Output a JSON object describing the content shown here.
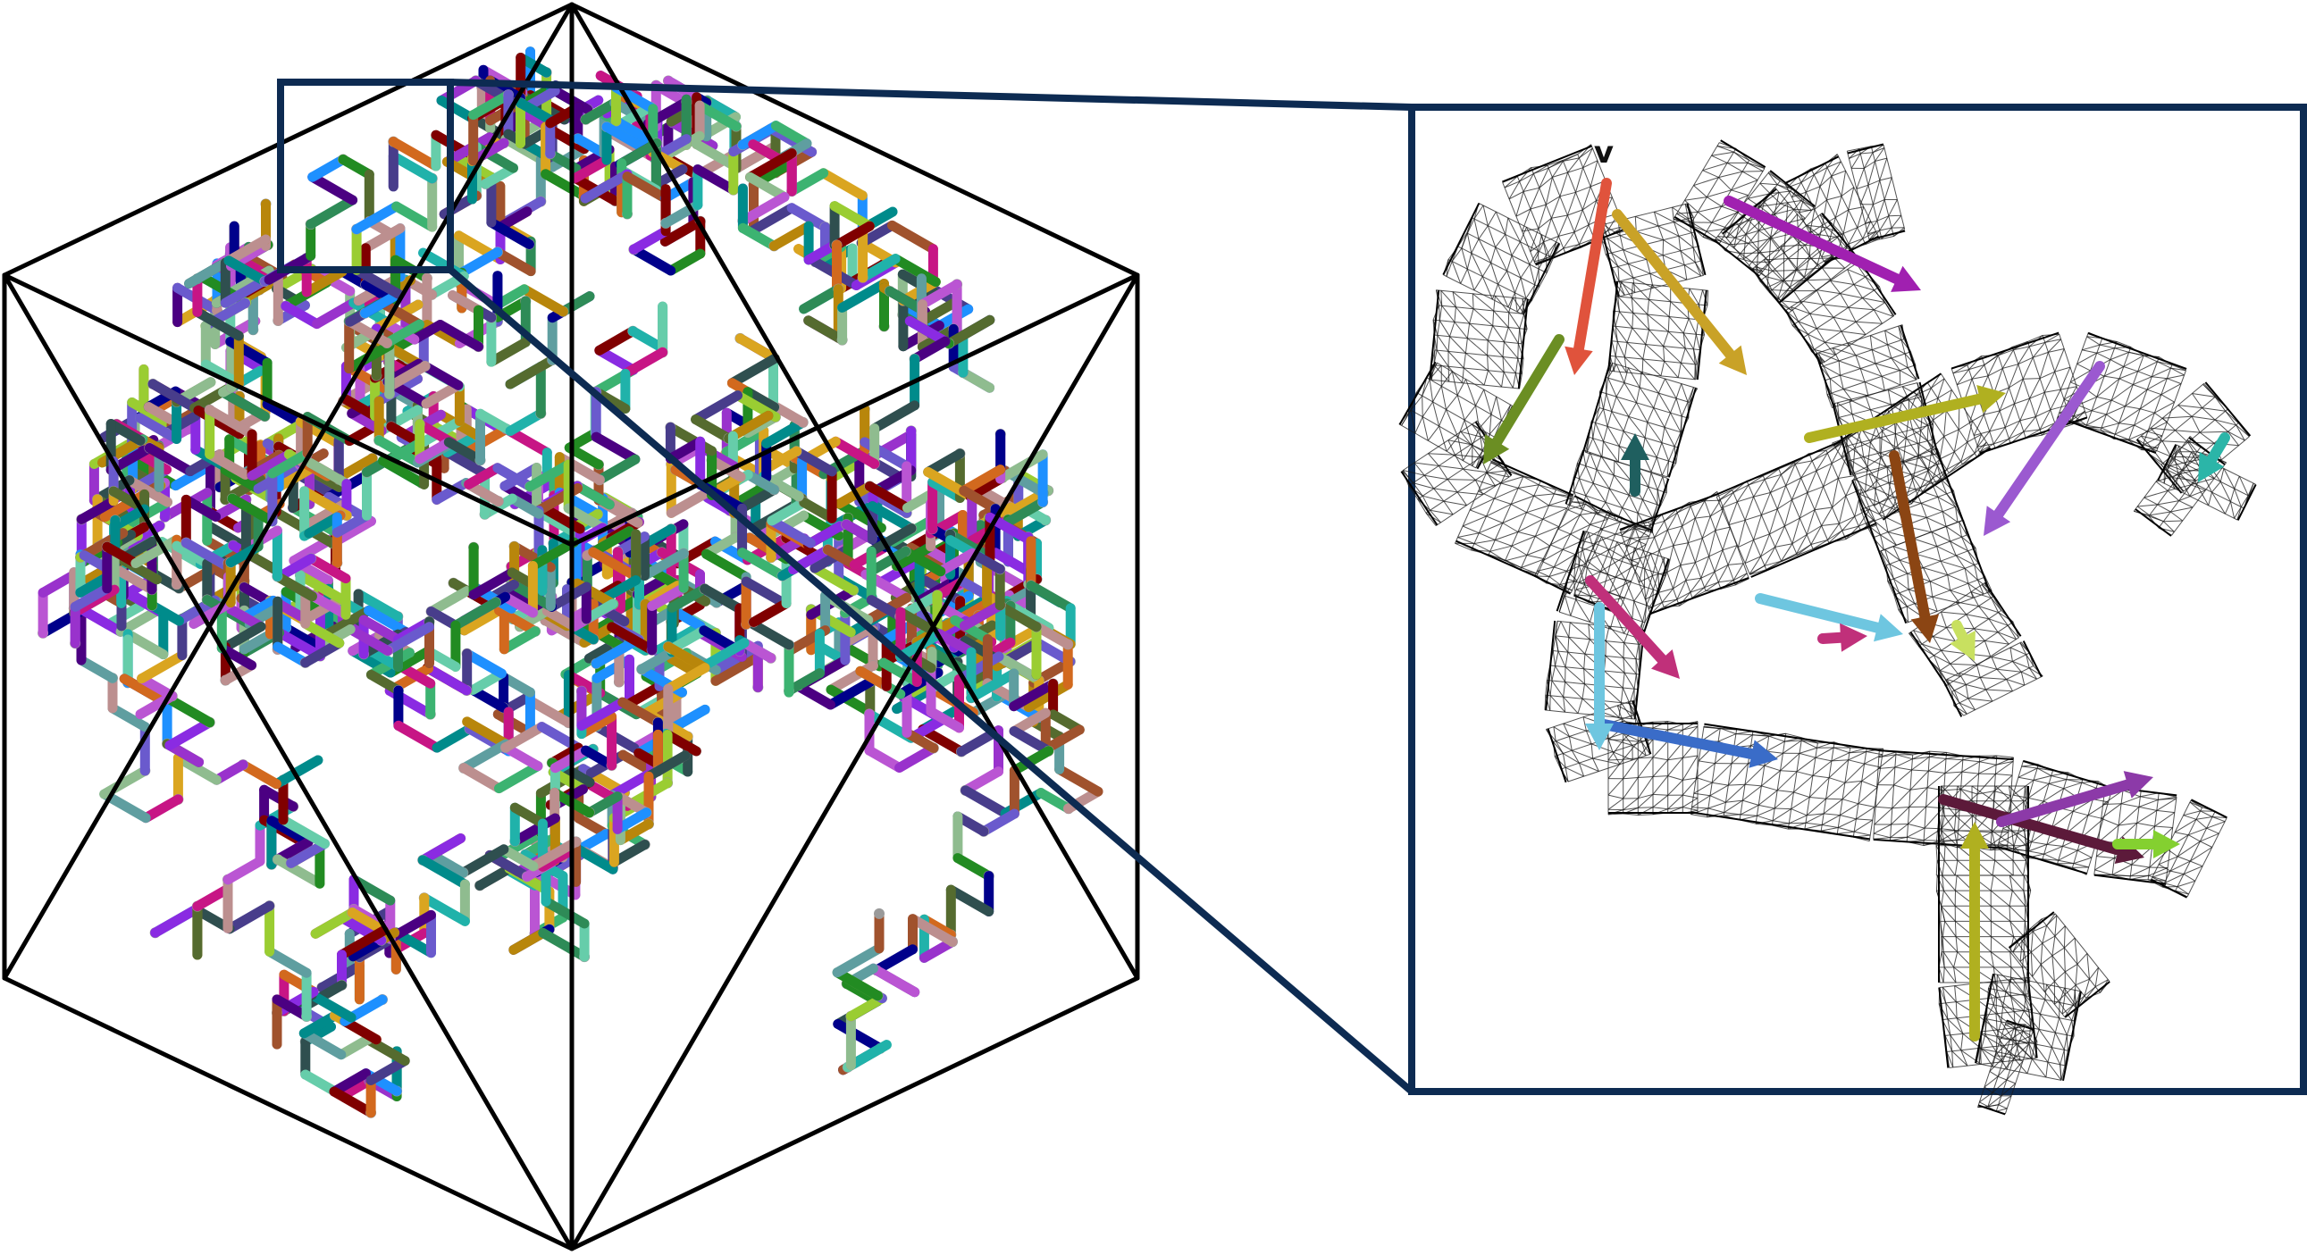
{
  "figure": {
    "zoom_frame_color": "#0d2b52",
    "cube_edge_color": "#000000",
    "mesh_color": "#1a1a1a",
    "background": "#ffffff"
  },
  "left_panel": {
    "object": "polymer-chain-in-cube",
    "segment_palette": [
      "#8a2be2",
      "#2e8b57",
      "#c71585",
      "#1e90ff",
      "#b8860b",
      "#228b22",
      "#4b0082",
      "#20b2aa",
      "#9acd32",
      "#800000",
      "#6a5acd",
      "#daa520",
      "#3cb371",
      "#ba55d3",
      "#008b8b",
      "#556b2f",
      "#d2691e",
      "#483d8b",
      "#66cdaa",
      "#9932cc",
      "#00008b",
      "#8fbc8f",
      "#a0522d",
      "#5f9ea0",
      "#bc8f8f",
      "#2f4f4f"
    ]
  },
  "right_panel": {
    "object": "zoomed-mesh-with-arrows",
    "vertex_label": "v",
    "arrow_colors": [
      "#e0533c",
      "#c9a227",
      "#a020b0",
      "#6b8e23",
      "#1f5f5f",
      "#8b4513",
      "#9b59d0",
      "#2bb5a8",
      "#c0307a",
      "#6ec6e0",
      "#3a6cc8",
      "#c8e060",
      "#b0b020",
      "#5c1a3a",
      "#8c3aa8",
      "#84d030"
    ]
  }
}
